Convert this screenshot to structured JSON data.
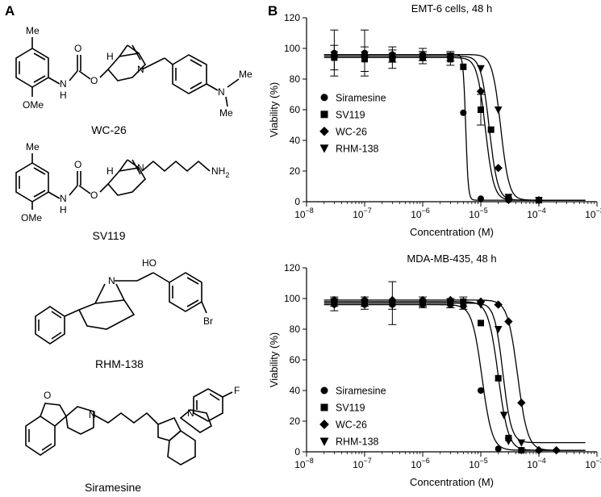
{
  "panels": {
    "a": "A",
    "b": "B"
  },
  "molecules": [
    {
      "name": "WC-26",
      "atoms": {
        "me": "Me",
        "ome": "OMe",
        "o1": "O",
        "o2": "O",
        "o3": "O",
        "h": "H",
        "n_ring": "N",
        "nh": "N",
        "nh_h": "H",
        "nme2": "N",
        "me_a": "Me",
        "me_b": "Me"
      }
    },
    {
      "name": "SV119",
      "atoms": {
        "me": "Me",
        "ome": "OMe",
        "o1": "O",
        "o2": "O",
        "o3": "O",
        "h": "H",
        "n_ring": "N",
        "nh": "N",
        "nh_h": "H",
        "nh2": "NH",
        "nh2_sub": "2"
      }
    },
    {
      "name": "RHM-138",
      "atoms": {
        "ho": "HO",
        "n": "N",
        "br": "Br"
      }
    },
    {
      "name": "Siramesine",
      "atoms": {
        "f": "F",
        "n1": "N",
        "n2": "N",
        "o": "O"
      }
    }
  ],
  "legend_markers": {
    "Siramesine": "circle",
    "SV119": "square",
    "WC-26": "diamond",
    "RHM-138": "triangle-down"
  },
  "chart_data": [
    {
      "type": "scatter",
      "title": "EMT-6 cells, 48 h",
      "xlabel": "Concentration (M)",
      "ylabel": "Viability (%)",
      "xscale": "log",
      "xlim": [
        1e-08,
        0.001
      ],
      "ylim": [
        0,
        120
      ],
      "xticks": [
        {
          "b": "10",
          "e": "−8"
        },
        {
          "b": "10",
          "e": "−7"
        },
        {
          "b": "10",
          "e": "−6"
        },
        {
          "b": "10",
          "e": "−5"
        },
        {
          "b": "10",
          "e": "−4"
        },
        {
          "b": "10",
          "e": "−3"
        }
      ],
      "yticks": [
        "0",
        "20",
        "40",
        "60",
        "80",
        "100",
        "120"
      ],
      "legend_position": "center-left",
      "series": [
        {
          "name": "Siramesine",
          "x": [
            3e-08,
            1e-07,
            3e-07,
            1e-06,
            3e-06,
            5e-06,
            1e-05,
            3e-05,
            0.0001
          ],
          "y": [
            97,
            97,
            96,
            96,
            95,
            58,
            2,
            1,
            1
          ],
          "err": [
            15,
            15,
            5,
            4,
            3,
            0,
            0,
            0,
            0
          ],
          "fit": {
            "top": 96,
            "bottom": 1,
            "ec50": 5.5e-06,
            "hill": 20
          }
        },
        {
          "name": "SV119",
          "x": [
            3e-08,
            1e-07,
            3e-07,
            1e-06,
            3e-06,
            5e-06,
            1e-05,
            1.5e-05,
            3e-05,
            0.0001
          ],
          "y": [
            94,
            93,
            93,
            94,
            93,
            88,
            60,
            47,
            2,
            1
          ],
          "err": [
            8,
            8,
            6,
            4,
            4,
            0,
            10,
            0,
            0,
            0
          ],
          "fit": {
            "top": 94,
            "bottom": 1,
            "ec50": 1.2e-05,
            "hill": 6
          }
        },
        {
          "name": "WC-26",
          "x": [
            3e-08,
            1e-07,
            3e-07,
            1e-06,
            3e-06,
            1e-05,
            2e-05,
            3e-05,
            0.0001
          ],
          "y": [
            95,
            95,
            94,
            94,
            94,
            72,
            22,
            2,
            1
          ],
          "err": [
            0,
            0,
            0,
            0,
            0,
            0,
            0,
            0,
            0
          ],
          "fit": {
            "top": 95,
            "bottom": 1,
            "ec50": 1.4e-05,
            "hill": 6
          }
        },
        {
          "name": "RHM-138",
          "x": [
            3e-08,
            1e-07,
            3e-07,
            1e-06,
            3e-06,
            1e-05,
            2e-05,
            3e-05,
            0.0001
          ],
          "y": [
            96,
            96,
            95,
            95,
            95,
            87,
            60,
            3,
            1
          ],
          "err": [
            0,
            0,
            0,
            0,
            0,
            0,
            0,
            0,
            0
          ],
          "fit": {
            "top": 96,
            "bottom": 1,
            "ec50": 2.2e-05,
            "hill": 6
          }
        }
      ]
    },
    {
      "type": "scatter",
      "title": "MDA-MB-435, 48 h",
      "xlabel": "Concentration (M)",
      "ylabel": "Viability (%)",
      "xscale": "log",
      "xlim": [
        1e-08,
        0.001
      ],
      "ylim": [
        0,
        120
      ],
      "xticks": [
        {
          "b": "10",
          "e": "−8"
        },
        {
          "b": "10",
          "e": "−7"
        },
        {
          "b": "10",
          "e": "−6"
        },
        {
          "b": "10",
          "e": "−5"
        },
        {
          "b": "10",
          "e": "−4"
        },
        {
          "b": "10",
          "e": "−3"
        }
      ],
      "yticks": [
        "0",
        "20",
        "40",
        "60",
        "80",
        "100",
        "120"
      ],
      "legend_position": "bottom-left",
      "series": [
        {
          "name": "Siramesine",
          "x": [
            3e-08,
            1e-07,
            3e-07,
            1e-06,
            3e-06,
            5e-06,
            1e-05,
            2e-05,
            5e-05
          ],
          "y": [
            96,
            96,
            96,
            96,
            96,
            95,
            40,
            2,
            1
          ],
          "err": [
            4,
            3,
            3,
            2,
            2,
            2,
            0,
            0,
            0
          ],
          "fit": {
            "top": 96,
            "bottom": 1,
            "ec50": 1.05e-05,
            "hill": 5
          }
        },
        {
          "name": "SV119",
          "x": [
            3e-08,
            1e-07,
            3e-07,
            1e-06,
            3e-06,
            5e-06,
            1e-05,
            2e-05,
            3e-05,
            5e-05
          ],
          "y": [
            98,
            98,
            97,
            98,
            97,
            98,
            84,
            48,
            9,
            1
          ],
          "err": [
            3,
            3,
            14,
            3,
            3,
            3,
            0,
            0,
            0,
            0
          ],
          "fit": {
            "top": 98,
            "bottom": 1,
            "ec50": 2e-05,
            "hill": 5
          }
        },
        {
          "name": "WC-26",
          "x": [
            3e-08,
            1e-07,
            3e-07,
            1e-06,
            3e-06,
            1e-05,
            2e-05,
            3e-05,
            5e-05,
            0.0001,
            0.0002
          ],
          "y": [
            99,
            99,
            99,
            99,
            99,
            98,
            96,
            85,
            32,
            1,
            1
          ],
          "err": [
            0,
            0,
            0,
            0,
            0,
            0,
            0,
            0,
            0,
            0,
            0
          ],
          "fit": {
            "top": 99,
            "bottom": 1,
            "ec50": 4.3e-05,
            "hill": 5
          }
        },
        {
          "name": "RHM-138",
          "x": [
            3e-08,
            1e-07,
            3e-07,
            1e-06,
            3e-06,
            1e-05,
            2e-05,
            2.5e-05,
            3e-05,
            5e-05
          ],
          "y": [
            97,
            97,
            97,
            97,
            97,
            96,
            80,
            24,
            7,
            6
          ],
          "err": [
            0,
            0,
            0,
            0,
            0,
            0,
            0,
            0,
            0,
            0
          ],
          "fit": {
            "top": 97,
            "bottom": 6,
            "ec50": 2.4e-05,
            "hill": 6
          }
        }
      ]
    }
  ]
}
